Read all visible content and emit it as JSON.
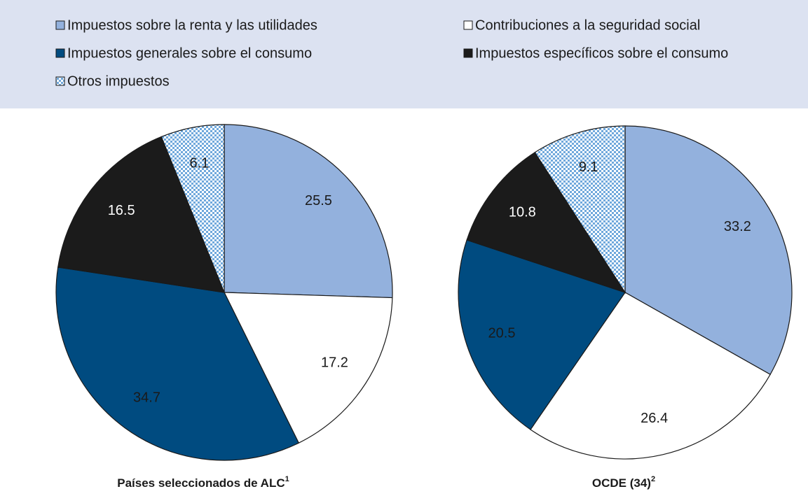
{
  "chart_data": [
    {
      "type": "pie",
      "title": "Países seleccionados de ALC",
      "title_note": "1",
      "categories": [
        "Impuestos sobre la renta y las utilidades",
        "Contribuciones a la seguridad social",
        "Impuestos generales sobre el consumo",
        "Impuestos específicos sobre el consumo",
        "Otros impuestos"
      ],
      "values": [
        25.5,
        17.2,
        34.7,
        16.5,
        6.1
      ],
      "colors": [
        "#93b1dd",
        "#ffffff",
        "#004b80",
        "#1b1b1b",
        "#6fa8dc"
      ],
      "patterns": [
        null,
        null,
        null,
        null,
        "dots"
      ]
    },
    {
      "type": "pie",
      "title": "OCDE (34)",
      "title_note": "2",
      "categories": [
        "Impuestos sobre la renta y las utilidades",
        "Contribuciones a la seguridad social",
        "Impuestos generales sobre el consumo",
        "Impuestos específicos sobre el consumo",
        "Otros impuestos"
      ],
      "values": [
        33.2,
        26.4,
        20.5,
        10.8,
        9.1
      ],
      "colors": [
        "#93b1dd",
        "#ffffff",
        "#004b80",
        "#1b1b1b",
        "#6fa8dc"
      ],
      "patterns": [
        null,
        null,
        null,
        null,
        "dots"
      ]
    }
  ]
}
